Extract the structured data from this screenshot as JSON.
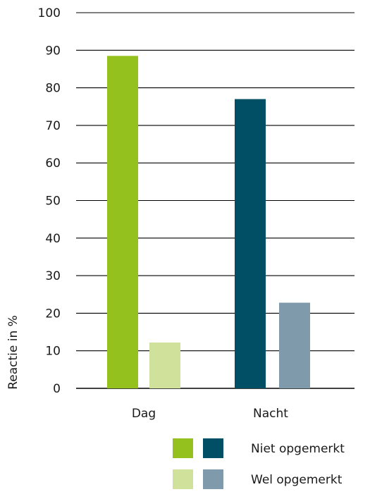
{
  "chart_data": {
    "type": "bar",
    "categories": [
      "Dag",
      "Nacht"
    ],
    "bars": [
      {
        "category": "Dag",
        "group": "Niet opgemerkt",
        "value": 88.5,
        "color": "#95c11f"
      },
      {
        "category": "Dag",
        "group": "Wel opgemerkt",
        "value": 12.2,
        "color": "#cfe19a"
      },
      {
        "category": "Nacht",
        "group": "Niet opgemerkt",
        "value": 77,
        "color": "#004f64"
      },
      {
        "category": "Nacht",
        "group": "Wel opgemerkt",
        "value": 22.8,
        "color": "#7e9aab"
      }
    ],
    "ylabel": "Reactie in %",
    "ylim": [
      0,
      100
    ],
    "yticks": [
      0,
      10,
      20,
      30,
      40,
      50,
      60,
      70,
      80,
      90,
      100
    ],
    "grid": true,
    "legend": {
      "placement": "bottom-right",
      "entries": [
        {
          "label": "Niet opgemerkt",
          "colors": [
            "#95c11f",
            "#004f64"
          ]
        },
        {
          "label": "Wel opgemerkt",
          "colors": [
            "#cfe19a",
            "#7e9aab"
          ]
        }
      ]
    }
  }
}
